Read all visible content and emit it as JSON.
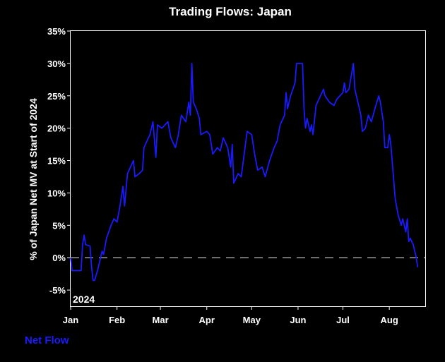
{
  "chart_data": {
    "type": "line",
    "title": "Trading Flows: Japan",
    "ylabel": "% of Japan Net MV at Start of 2024",
    "xlabel": "",
    "year_label": "2024",
    "x_tick_labels": [
      "Jan",
      "Feb",
      "Mar",
      "Apr",
      "May",
      "Jun",
      "Jul",
      "Aug"
    ],
    "y_tick_labels": [
      "-5%",
      "0%",
      "5%",
      "10%",
      "15%",
      "20%",
      "25%",
      "30%",
      "35%"
    ],
    "y_ticks": [
      -5,
      0,
      5,
      10,
      15,
      20,
      25,
      30,
      35
    ],
    "ylim": [
      -7.5,
      35
    ],
    "xlim": [
      "2024-01-01",
      "2024-08-25"
    ],
    "zero_line": "dashed",
    "grid": false,
    "legend_position": "bottom-left",
    "series": [
      {
        "name": "Net Flow",
        "color": "#1a1aff",
        "points": [
          [
            "2024-01-01",
            0
          ],
          [
            "2024-01-02",
            -2
          ],
          [
            "2024-01-05",
            -2
          ],
          [
            "2024-01-08",
            -2
          ],
          [
            "2024-01-09",
            2
          ],
          [
            "2024-01-10",
            3.5
          ],
          [
            "2024-01-11",
            2
          ],
          [
            "2024-01-14",
            1.8
          ],
          [
            "2024-01-15",
            -1.5
          ],
          [
            "2024-01-16",
            -3.5
          ],
          [
            "2024-01-17",
            -3.5
          ],
          [
            "2024-01-19",
            -2
          ],
          [
            "2024-01-21",
            0
          ],
          [
            "2024-01-22",
            1
          ],
          [
            "2024-01-23",
            0.5
          ],
          [
            "2024-01-25",
            3
          ],
          [
            "2024-01-28",
            5
          ],
          [
            "2024-01-30",
            6
          ],
          [
            "2024-02-01",
            5.5
          ],
          [
            "2024-02-03",
            8
          ],
          [
            "2024-02-05",
            11
          ],
          [
            "2024-02-06",
            8
          ],
          [
            "2024-02-08",
            13
          ],
          [
            "2024-02-10",
            14
          ],
          [
            "2024-02-12",
            15
          ],
          [
            "2024-02-13",
            12.5
          ],
          [
            "2024-02-16",
            13
          ],
          [
            "2024-02-18",
            13.5
          ],
          [
            "2024-02-19",
            17
          ],
          [
            "2024-02-21",
            18
          ],
          [
            "2024-02-23",
            19
          ],
          [
            "2024-02-25",
            21
          ],
          [
            "2024-02-27",
            15.5
          ],
          [
            "2024-02-28",
            20.5
          ],
          [
            "2024-03-02",
            20
          ],
          [
            "2024-03-04",
            20.5
          ],
          [
            "2024-03-06",
            21
          ],
          [
            "2024-03-08",
            18.5
          ],
          [
            "2024-03-11",
            17
          ],
          [
            "2024-03-13",
            19
          ],
          [
            "2024-03-15",
            22
          ],
          [
            "2024-03-18",
            21
          ],
          [
            "2024-03-20",
            24
          ],
          [
            "2024-03-21",
            22
          ],
          [
            "2024-03-22",
            30
          ],
          [
            "2024-03-23",
            24
          ],
          [
            "2024-03-25",
            23
          ],
          [
            "2024-03-27",
            21.5
          ],
          [
            "2024-03-28",
            19
          ],
          [
            "2024-04-01",
            19.5
          ],
          [
            "2024-04-03",
            19
          ],
          [
            "2024-04-05",
            16
          ],
          [
            "2024-04-08",
            17
          ],
          [
            "2024-04-10",
            16.5
          ],
          [
            "2024-04-12",
            18.5
          ],
          [
            "2024-04-15",
            17
          ],
          [
            "2024-04-17",
            14
          ],
          [
            "2024-04-18",
            17.5
          ],
          [
            "2024-04-19",
            11.5
          ],
          [
            "2024-04-22",
            13
          ],
          [
            "2024-04-24",
            12.5
          ],
          [
            "2024-04-26",
            16
          ],
          [
            "2024-04-28",
            19.5
          ],
          [
            "2024-05-01",
            19
          ],
          [
            "2024-05-03",
            16
          ],
          [
            "2024-05-05",
            13.5
          ],
          [
            "2024-05-08",
            14
          ],
          [
            "2024-05-10",
            12.5
          ],
          [
            "2024-05-13",
            15
          ],
          [
            "2024-05-16",
            17
          ],
          [
            "2024-05-18",
            18
          ],
          [
            "2024-05-20",
            20.5
          ],
          [
            "2024-05-23",
            22
          ],
          [
            "2024-05-24",
            25.5
          ],
          [
            "2024-05-25",
            23
          ],
          [
            "2024-05-27",
            25
          ],
          [
            "2024-05-30",
            27
          ],
          [
            "2024-05-31",
            30
          ],
          [
            "2024-06-04",
            30
          ],
          [
            "2024-06-05",
            23
          ],
          [
            "2024-06-06",
            20
          ],
          [
            "2024-06-07",
            21.5
          ],
          [
            "2024-06-09",
            19.5
          ],
          [
            "2024-06-10",
            20.5
          ],
          [
            "2024-06-11",
            19
          ],
          [
            "2024-06-13",
            23.5
          ],
          [
            "2024-06-15",
            24.5
          ],
          [
            "2024-06-18",
            26
          ],
          [
            "2024-06-19",
            25
          ],
          [
            "2024-06-22",
            24
          ],
          [
            "2024-06-25",
            23.5
          ],
          [
            "2024-06-27",
            24.5
          ],
          [
            "2024-06-29",
            25
          ],
          [
            "2024-07-01",
            25.5
          ],
          [
            "2024-07-02",
            27
          ],
          [
            "2024-07-03",
            25.5
          ],
          [
            "2024-07-05",
            26
          ],
          [
            "2024-07-08",
            30
          ],
          [
            "2024-07-09",
            26
          ],
          [
            "2024-07-11",
            24
          ],
          [
            "2024-07-13",
            22
          ],
          [
            "2024-07-14",
            19.5
          ],
          [
            "2024-07-16",
            20
          ],
          [
            "2024-07-18",
            22
          ],
          [
            "2024-07-20",
            21
          ],
          [
            "2024-07-23",
            23.5
          ],
          [
            "2024-07-25",
            25
          ],
          [
            "2024-07-26",
            24
          ],
          [
            "2024-07-28",
            21
          ],
          [
            "2024-07-29",
            17
          ],
          [
            "2024-07-31",
            17
          ],
          [
            "2024-08-01",
            19
          ],
          [
            "2024-08-02",
            17.5
          ],
          [
            "2024-08-05",
            9
          ],
          [
            "2024-08-07",
            6.5
          ],
          [
            "2024-08-09",
            5
          ],
          [
            "2024-08-10",
            6
          ],
          [
            "2024-08-12",
            4
          ],
          [
            "2024-08-13",
            6
          ],
          [
            "2024-08-14",
            2.5
          ],
          [
            "2024-08-15",
            3
          ],
          [
            "2024-08-16",
            2.5
          ],
          [
            "2024-08-17",
            2
          ],
          [
            "2024-08-19",
            0
          ],
          [
            "2024-08-20",
            -1.5
          ]
        ]
      }
    ]
  }
}
